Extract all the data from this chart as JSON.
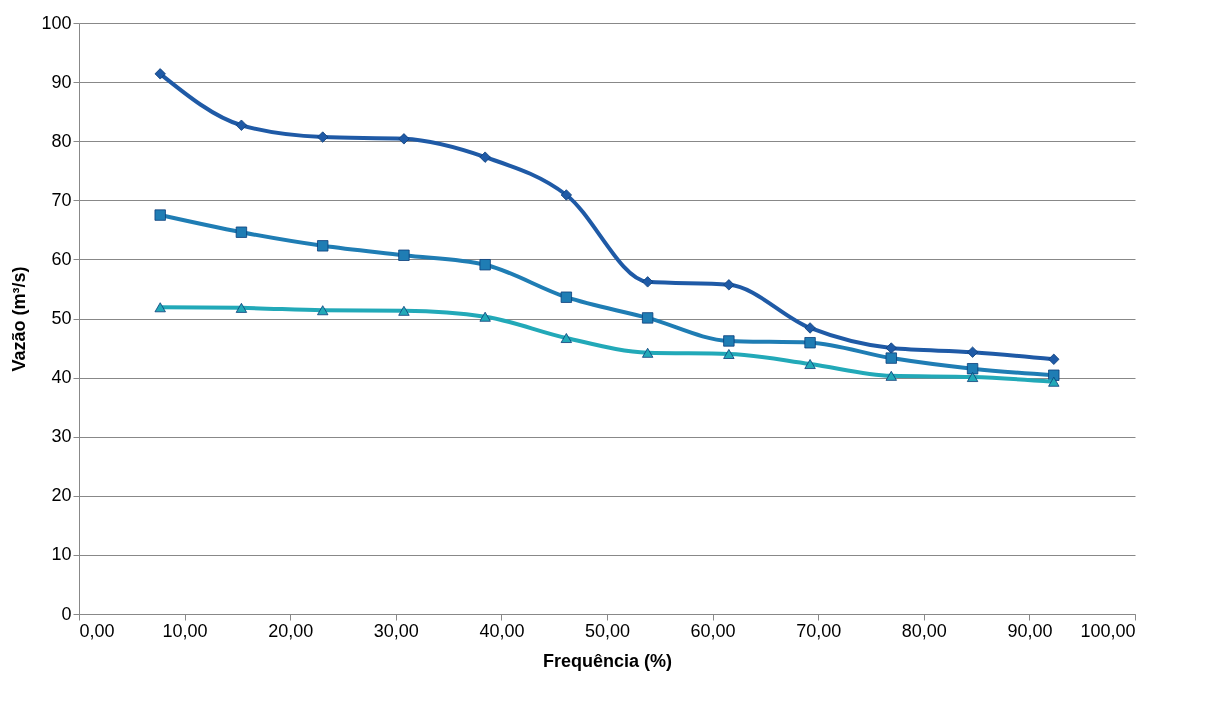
{
  "chart_data": {
    "type": "line",
    "xlabel": "Frequência (%)",
    "ylabel": "Vazão (m³/s)",
    "x": [
      7.69,
      15.38,
      23.08,
      30.77,
      38.46,
      46.15,
      53.85,
      61.54,
      69.23,
      76.92,
      84.62,
      92.31
    ],
    "series": [
      {
        "color": "#1f5aa6",
        "marker": "diamond",
        "values": [
          91.4,
          82.7,
          80.7,
          80.4,
          77.3,
          70.9,
          56.2,
          55.7,
          48.4,
          45.0,
          44.3,
          43.1
        ]
      },
      {
        "color": "#1f7db4",
        "marker": "square",
        "values": [
          67.5,
          64.6,
          62.3,
          60.7,
          59.1,
          53.6,
          50.1,
          46.2,
          45.9,
          43.3,
          41.5,
          40.4
        ]
      },
      {
        "color": "#22a9b8",
        "marker": "triangle",
        "values": [
          51.9,
          51.8,
          51.4,
          51.3,
          50.3,
          46.7,
          44.2,
          44.0,
          42.3,
          40.3,
          40.1,
          39.3
        ]
      }
    ],
    "xlim": [
      0,
      100
    ],
    "xticks": [
      {
        "value": 0,
        "label": "0,00"
      },
      {
        "value": 10,
        "label": "10,00"
      },
      {
        "value": 20,
        "label": "20,00"
      },
      {
        "value": 30,
        "label": "30,00"
      },
      {
        "value": 40,
        "label": "40,00"
      },
      {
        "value": 50,
        "label": "50,00"
      },
      {
        "value": 60,
        "label": "60,00"
      },
      {
        "value": 70,
        "label": "70,00"
      },
      {
        "value": 80,
        "label": "80,00"
      },
      {
        "value": 90,
        "label": "90,00"
      },
      {
        "value": 100,
        "label": "100,00"
      }
    ],
    "ylim": [
      0,
      100
    ],
    "yticks": [
      0,
      10,
      20,
      30,
      40,
      50,
      60,
      70,
      80,
      90,
      100
    ],
    "grid": "y",
    "line_style": "solid"
  }
}
